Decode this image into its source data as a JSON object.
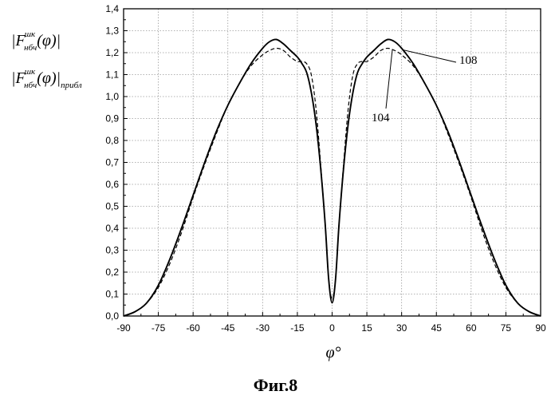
{
  "chart_data": {
    "type": "line",
    "title": "",
    "xlabel": "φ°",
    "ylabel_lines": [
      [
        "|",
        "F",
        "шк",
        "нбч",
        "(φ)|",
        ""
      ],
      [
        "|",
        "F",
        "шк",
        "нбч",
        "(φ)|",
        "прибл"
      ]
    ],
    "xlim": [
      -90,
      90
    ],
    "ylim": [
      0,
      1.4
    ],
    "xticks": [
      "-90",
      "-75",
      "-60",
      "-45",
      "-30",
      "-15",
      "0",
      "15",
      "30",
      "45",
      "60",
      "75",
      "90"
    ],
    "yticks": [
      "0,0",
      "0,1",
      "0,2",
      "0,3",
      "0,4",
      "0,5",
      "0,6",
      "0,7",
      "0,8",
      "0,9",
      "1,0",
      "1,1",
      "1,2",
      "1,3",
      "1,4"
    ],
    "grid": true,
    "annotations": [
      "108",
      "104"
    ],
    "series": [
      {
        "style": "solid",
        "x": [
          -90,
          -85,
          -80,
          -75,
          -70,
          -65,
          -60,
          -55,
          -50,
          -45,
          -40,
          -35,
          -30,
          -27,
          -24,
          -21,
          -18,
          -15,
          -13,
          -11,
          -9,
          -7,
          -5,
          -3,
          -1.5,
          0,
          1.5,
          3,
          5,
          7,
          9,
          11,
          13,
          15,
          18,
          21,
          24,
          27,
          30,
          35,
          40,
          45,
          50,
          55,
          60,
          65,
          70,
          75,
          80,
          85,
          90
        ],
        "y": [
          0.0,
          0.02,
          0.06,
          0.14,
          0.26,
          0.4,
          0.55,
          0.7,
          0.84,
          0.96,
          1.06,
          1.15,
          1.22,
          1.25,
          1.26,
          1.24,
          1.21,
          1.18,
          1.15,
          1.11,
          1.02,
          0.88,
          0.68,
          0.42,
          0.17,
          0.06,
          0.17,
          0.42,
          0.68,
          0.88,
          1.02,
          1.11,
          1.15,
          1.18,
          1.21,
          1.24,
          1.26,
          1.25,
          1.22,
          1.15,
          1.06,
          0.96,
          0.84,
          0.7,
          0.55,
          0.4,
          0.26,
          0.14,
          0.06,
          0.02,
          0.0
        ]
      },
      {
        "style": "dashed",
        "x": [
          -90,
          -85,
          -80,
          -75,
          -70,
          -65,
          -60,
          -55,
          -50,
          -45,
          -40,
          -35,
          -30,
          -27,
          -24,
          -21,
          -18,
          -15,
          -13,
          -11,
          -9,
          -7,
          -5,
          -3,
          -1.5,
          0,
          1.5,
          3,
          5,
          7,
          9,
          11,
          13,
          15,
          18,
          21,
          24,
          27,
          30,
          35,
          40,
          45,
          50,
          55,
          60,
          65,
          70,
          75,
          80,
          85,
          90
        ],
        "y": [
          0.0,
          0.02,
          0.06,
          0.13,
          0.24,
          0.38,
          0.54,
          0.69,
          0.83,
          0.96,
          1.06,
          1.14,
          1.19,
          1.21,
          1.22,
          1.21,
          1.18,
          1.16,
          1.16,
          1.15,
          1.1,
          0.95,
          0.7,
          0.42,
          0.17,
          0.08,
          0.17,
          0.42,
          0.7,
          0.95,
          1.1,
          1.15,
          1.16,
          1.16,
          1.18,
          1.21,
          1.22,
          1.21,
          1.19,
          1.14,
          1.06,
          0.96,
          0.83,
          0.69,
          0.54,
          0.38,
          0.24,
          0.13,
          0.06,
          0.02,
          0.0
        ]
      }
    ]
  },
  "caption": "Фиг.8"
}
